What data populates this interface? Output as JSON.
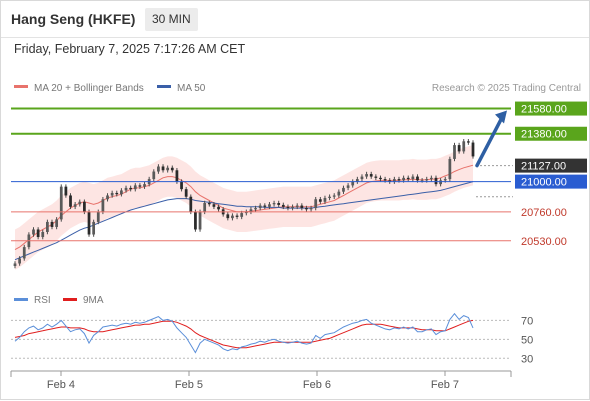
{
  "header": {
    "title": "Hang Seng (HKFE)",
    "timeframe": "30 MIN"
  },
  "datetime": "Friday, February 7, 2025 7:17:26 AM CET",
  "legend": {
    "ma20_label": "MA 20 + Bollinger Bands",
    "ma50_label": "MA 50",
    "credit": "Research © 2025 Trading Central"
  },
  "colors": {
    "resistance": "#5aa51c",
    "pivot": "#2a5dd1",
    "support": "#e8736c",
    "price_tag": "#333333",
    "candle": "#4a4a4a",
    "ma20": "#e8736c",
    "ma50": "#3a5fa8",
    "band_fill": "#fde0de",
    "rsi": "#5b8fd9",
    "rsi_ma": "#e01e1e",
    "arrow": "#2e5fa3"
  },
  "chart_data": {
    "type": "candlestick",
    "instrument": "Hang Seng (HKFE)",
    "interval": "30 MIN",
    "x_ticks": [
      "Feb 4",
      "Feb 5",
      "Feb 6",
      "Feb 7"
    ],
    "ylim": [
      20330,
      21640
    ],
    "levels": [
      {
        "value": 21580.0,
        "label": "21580.00",
        "kind": "resistance"
      },
      {
        "value": 21380.0,
        "label": "21380.00",
        "kind": "resistance"
      },
      {
        "value": 21000.0,
        "label": "21000.00",
        "kind": "pivot"
      },
      {
        "value": 20760.0,
        "label": "20760.00",
        "kind": "support"
      },
      {
        "value": 20530.0,
        "label": "20530.00",
        "kind": "support"
      }
    ],
    "last_price": {
      "value": 21127.0,
      "label": "21127.00"
    },
    "close": [
      20350,
      20390,
      20480,
      20580,
      20620,
      20560,
      20600,
      20680,
      20640,
      20700,
      20960,
      20890,
      20800,
      20820,
      20840,
      20760,
      20580,
      20680,
      20760,
      20860,
      20890,
      20910,
      20900,
      20930,
      20950,
      20940,
      20970,
      20960,
      20980,
      21020,
      21080,
      21120,
      21090,
      21110,
      21090,
      21000,
      20940,
      20880,
      20760,
      20620,
      20760,
      20830,
      20820,
      20800,
      20780,
      20740,
      20710,
      20730,
      20720,
      20750,
      20760,
      20780,
      20790,
      20810,
      20800,
      20820,
      20830,
      20815,
      20800,
      20790,
      20800,
      20810,
      20790,
      20780,
      20790,
      20860,
      20840,
      20870,
      20880,
      20890,
      20920,
      20950,
      20970,
      21000,
      21020,
      21040,
      21060,
      21040,
      21030,
      21020,
      21010,
      21000,
      21020,
      21010,
      21030,
      21020,
      21040,
      21010,
      21010,
      21020,
      21030,
      20980,
      21010,
      21020,
      21180,
      21290,
      21240,
      21320,
      21310,
      21200
    ],
    "ma20": [
      20460,
      20480,
      20510,
      20540,
      20570,
      20600,
      20620,
      20640,
      20660,
      20690,
      20730,
      20760,
      20790,
      20810,
      20830,
      20840,
      20830,
      20820,
      20830,
      20850,
      20870,
      20880,
      20890,
      20900,
      20920,
      20940,
      20950,
      20950,
      20960,
      20970,
      20990,
      21010,
      21030,
      21040,
      21040,
      21030,
      21010,
      20990,
      20960,
      20920,
      20890,
      20870,
      20850,
      20830,
      20810,
      20790,
      20780,
      20770,
      20760,
      20760,
      20760,
      20765,
      20770,
      20775,
      20780,
      20785,
      20790,
      20795,
      20800,
      20800,
      20800,
      20800,
      20800,
      20800,
      20800,
      20810,
      20820,
      20830,
      20840,
      20850,
      20870,
      20890,
      20910,
      20930,
      20950,
      20970,
      20990,
      21000,
      21005,
      21010,
      21010,
      21010,
      21010,
      21010,
      21015,
      21015,
      21020,
      21015,
      21015,
      21015,
      21020,
      21020,
      21030,
      21045,
      21060,
      21080,
      21095,
      21110,
      21120,
      21130
    ],
    "ma50": [
      20380,
      20395,
      20410,
      20425,
      20440,
      20455,
      20470,
      20485,
      20500,
      20515,
      20535,
      20555,
      20575,
      20595,
      20615,
      20630,
      20640,
      20655,
      20670,
      20685,
      20700,
      20715,
      20730,
      20745,
      20760,
      20775,
      20785,
      20795,
      20805,
      20815,
      20825,
      20835,
      20845,
      20855,
      20860,
      20865,
      20865,
      20865,
      20860,
      20850,
      20845,
      20840,
      20835,
      20830,
      20825,
      20820,
      20815,
      20810,
      20805,
      20805,
      20800,
      20800,
      20800,
      20800,
      20795,
      20795,
      20795,
      20795,
      20790,
      20790,
      20790,
      20790,
      20790,
      20790,
      20790,
      20795,
      20800,
      20805,
      20810,
      20815,
      20820,
      20825,
      20830,
      20835,
      20840,
      20845,
      20850,
      20855,
      20860,
      20865,
      20870,
      20875,
      20880,
      20885,
      20890,
      20895,
      20900,
      20905,
      20910,
      20915,
      20920,
      20925,
      20930,
      20940,
      20950,
      20960,
      20970,
      20980,
      20990,
      21000
    ],
    "bollinger_width": 160,
    "forecast_arrow": {
      "from": 21127,
      "to": 21580
    },
    "indicator": {
      "name": "RSI",
      "legend": [
        "RSI",
        "9MA"
      ],
      "y_ticks": [
        70,
        50,
        30
      ],
      "ylim": [
        25,
        82
      ],
      "rsi": [
        48,
        52,
        58,
        62,
        64,
        60,
        62,
        66,
        63,
        66,
        70,
        64,
        58,
        60,
        61,
        56,
        46,
        54,
        58,
        63,
        64,
        65,
        64,
        66,
        67,
        66,
        68,
        67,
        68,
        70,
        72,
        74,
        70,
        71,
        69,
        62,
        57,
        52,
        44,
        36,
        46,
        50,
        48,
        46,
        44,
        40,
        38,
        40,
        39,
        42,
        43,
        45,
        46,
        48,
        47,
        49,
        50,
        48,
        47,
        46,
        47,
        48,
        46,
        45,
        46,
        54,
        51,
        55,
        56,
        57,
        60,
        63,
        65,
        67,
        68,
        70,
        71,
        67,
        65,
        63,
        61,
        60,
        62,
        61,
        63,
        61,
        63,
        58,
        58,
        60,
        61,
        55,
        58,
        59,
        71,
        77,
        71,
        75,
        73,
        62
      ],
      "rsi_ma": [
        52,
        53,
        54,
        56,
        57,
        58,
        59,
        60,
        61,
        62,
        63,
        63,
        62,
        62,
        62,
        61,
        59,
        58,
        58,
        58,
        59,
        60,
        61,
        62,
        63,
        64,
        65,
        65,
        66,
        66,
        67,
        68,
        69,
        69,
        69,
        68,
        66,
        64,
        61,
        57,
        54,
        52,
        50,
        48,
        46,
        44,
        43,
        42,
        41,
        41,
        41,
        42,
        43,
        44,
        45,
        46,
        47,
        47,
        47,
        47,
        47,
        47,
        47,
        47,
        47,
        48,
        49,
        50,
        51,
        53,
        55,
        57,
        59,
        61,
        63,
        65,
        66,
        66,
        66,
        66,
        65,
        64,
        63,
        62,
        62,
        62,
        62,
        61,
        60,
        60,
        60,
        59,
        59,
        59,
        61,
        63,
        65,
        67,
        69,
        70
      ]
    }
  }
}
